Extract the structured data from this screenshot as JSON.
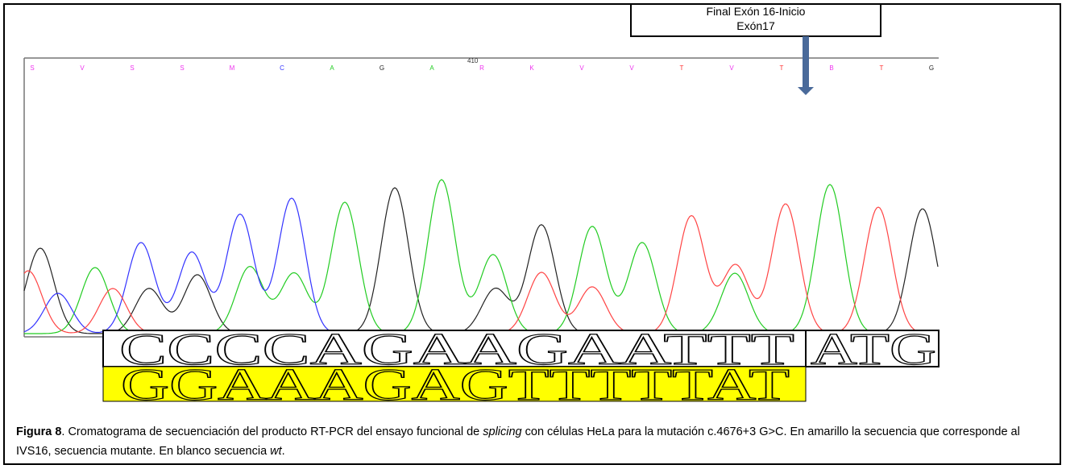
{
  "callout": [
    "Final Exón 16-Inicio",
    "Exón17"
  ],
  "position_label": "410",
  "base_calls": [
    "S",
    "V",
    "S",
    "S",
    "M",
    "C",
    "A",
    "G",
    "A",
    "R",
    "K",
    "V",
    "V",
    "T",
    "V",
    "T",
    "B",
    "T",
    "G"
  ],
  "sequence_wt": [
    "CCCCAGAAGAATTT",
    "ATG"
  ],
  "sequence_mutant": "GGAAAGAGTTTTTAT",
  "caption": {
    "label": "Figura 8",
    "text_1": ". Cromatograma de secuenciación del producto RT-PCR del ensayo funcional de ",
    "italic_1": "splicing",
    "text_2": " con células HeLa para la mutación c.4676+3 G>C. En amarillo la secuencia que corresponde al IVS16, secuencia mutante. En blanco secuencia ",
    "italic_2": "wt",
    "text_3": "."
  }
}
